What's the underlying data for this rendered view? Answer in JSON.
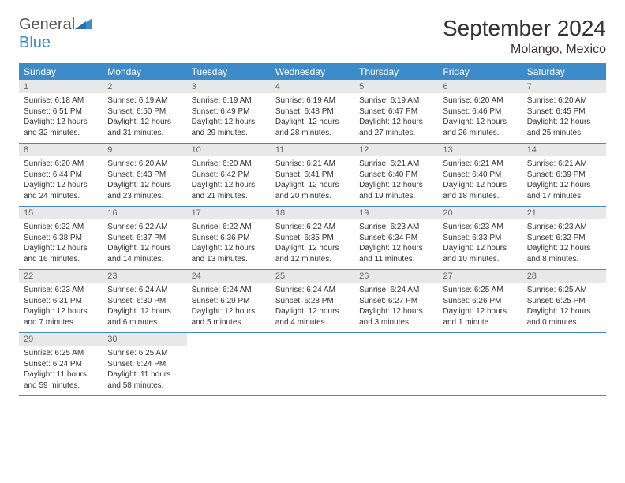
{
  "logo": {
    "text1": "General",
    "text2": "Blue"
  },
  "title": "September 2024",
  "location": "Molango, Mexico",
  "colors": {
    "header_bg": "#3d8bc9",
    "header_fg": "#ffffff",
    "daynum_bg": "#e8e8e8",
    "border": "#3d8bc9",
    "text": "#333333",
    "logo_blue": "#3d8bc9"
  },
  "weekdays": [
    "Sunday",
    "Monday",
    "Tuesday",
    "Wednesday",
    "Thursday",
    "Friday",
    "Saturday"
  ],
  "days": [
    {
      "n": 1,
      "sr": "6:18 AM",
      "ss": "6:51 PM",
      "dl": "12 hours and 32 minutes."
    },
    {
      "n": 2,
      "sr": "6:19 AM",
      "ss": "6:50 PM",
      "dl": "12 hours and 31 minutes."
    },
    {
      "n": 3,
      "sr": "6:19 AM",
      "ss": "6:49 PM",
      "dl": "12 hours and 29 minutes."
    },
    {
      "n": 4,
      "sr": "6:19 AM",
      "ss": "6:48 PM",
      "dl": "12 hours and 28 minutes."
    },
    {
      "n": 5,
      "sr": "6:19 AM",
      "ss": "6:47 PM",
      "dl": "12 hours and 27 minutes."
    },
    {
      "n": 6,
      "sr": "6:20 AM",
      "ss": "6:46 PM",
      "dl": "12 hours and 26 minutes."
    },
    {
      "n": 7,
      "sr": "6:20 AM",
      "ss": "6:45 PM",
      "dl": "12 hours and 25 minutes."
    },
    {
      "n": 8,
      "sr": "6:20 AM",
      "ss": "6:44 PM",
      "dl": "12 hours and 24 minutes."
    },
    {
      "n": 9,
      "sr": "6:20 AM",
      "ss": "6:43 PM",
      "dl": "12 hours and 23 minutes."
    },
    {
      "n": 10,
      "sr": "6:20 AM",
      "ss": "6:42 PM",
      "dl": "12 hours and 21 minutes."
    },
    {
      "n": 11,
      "sr": "6:21 AM",
      "ss": "6:41 PM",
      "dl": "12 hours and 20 minutes."
    },
    {
      "n": 12,
      "sr": "6:21 AM",
      "ss": "6:40 PM",
      "dl": "12 hours and 19 minutes."
    },
    {
      "n": 13,
      "sr": "6:21 AM",
      "ss": "6:40 PM",
      "dl": "12 hours and 18 minutes."
    },
    {
      "n": 14,
      "sr": "6:21 AM",
      "ss": "6:39 PM",
      "dl": "12 hours and 17 minutes."
    },
    {
      "n": 15,
      "sr": "6:22 AM",
      "ss": "6:38 PM",
      "dl": "12 hours and 16 minutes."
    },
    {
      "n": 16,
      "sr": "6:22 AM",
      "ss": "6:37 PM",
      "dl": "12 hours and 14 minutes."
    },
    {
      "n": 17,
      "sr": "6:22 AM",
      "ss": "6:36 PM",
      "dl": "12 hours and 13 minutes."
    },
    {
      "n": 18,
      "sr": "6:22 AM",
      "ss": "6:35 PM",
      "dl": "12 hours and 12 minutes."
    },
    {
      "n": 19,
      "sr": "6:23 AM",
      "ss": "6:34 PM",
      "dl": "12 hours and 11 minutes."
    },
    {
      "n": 20,
      "sr": "6:23 AM",
      "ss": "6:33 PM",
      "dl": "12 hours and 10 minutes."
    },
    {
      "n": 21,
      "sr": "6:23 AM",
      "ss": "6:32 PM",
      "dl": "12 hours and 8 minutes."
    },
    {
      "n": 22,
      "sr": "6:23 AM",
      "ss": "6:31 PM",
      "dl": "12 hours and 7 minutes."
    },
    {
      "n": 23,
      "sr": "6:24 AM",
      "ss": "6:30 PM",
      "dl": "12 hours and 6 minutes."
    },
    {
      "n": 24,
      "sr": "6:24 AM",
      "ss": "6:29 PM",
      "dl": "12 hours and 5 minutes."
    },
    {
      "n": 25,
      "sr": "6:24 AM",
      "ss": "6:28 PM",
      "dl": "12 hours and 4 minutes."
    },
    {
      "n": 26,
      "sr": "6:24 AM",
      "ss": "6:27 PM",
      "dl": "12 hours and 3 minutes."
    },
    {
      "n": 27,
      "sr": "6:25 AM",
      "ss": "6:26 PM",
      "dl": "12 hours and 1 minute."
    },
    {
      "n": 28,
      "sr": "6:25 AM",
      "ss": "6:25 PM",
      "dl": "12 hours and 0 minutes."
    },
    {
      "n": 29,
      "sr": "6:25 AM",
      "ss": "6:24 PM",
      "dl": "11 hours and 59 minutes."
    },
    {
      "n": 30,
      "sr": "6:25 AM",
      "ss": "6:24 PM",
      "dl": "11 hours and 58 minutes."
    }
  ],
  "labels": {
    "sunrise": "Sunrise:",
    "sunset": "Sunset:",
    "daylight": "Daylight:"
  }
}
